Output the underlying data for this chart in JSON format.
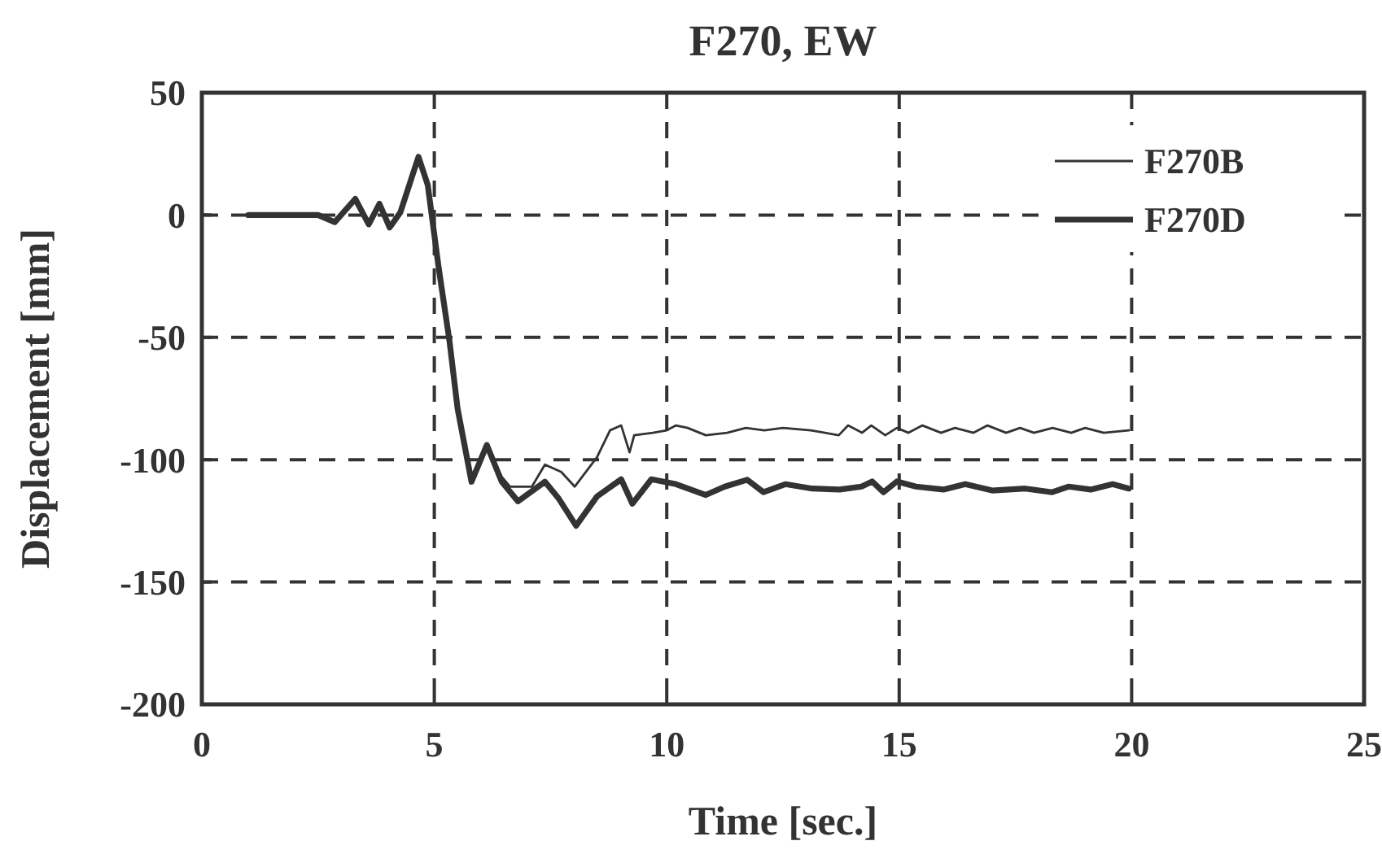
{
  "chart_data": {
    "type": "line",
    "title": "F270, EW",
    "xlabel": "Time [sec.]",
    "ylabel": "Displacement [mm]",
    "xlim": [
      0,
      25
    ],
    "xticks": [
      0,
      5,
      10,
      15,
      20,
      25
    ],
    "ylim": [
      -200,
      50
    ],
    "yticks": [
      -200,
      -150,
      -100,
      -50,
      0,
      50
    ],
    "grid": true,
    "legend": "top right",
    "line_style": "solid",
    "marker": "none",
    "series": [
      {
        "name": "F270B",
        "color": "#333333",
        "x": [
          1.0,
          2.5,
          2.86,
          3.3,
          3.59,
          3.82,
          4.04,
          4.27,
          4.66,
          4.86,
          5.09,
          5.33,
          5.5,
          5.8,
          6.13,
          6.45,
          6.63,
          7.1,
          7.38,
          7.73,
          8.02,
          8.5,
          8.78,
          9.02,
          9.2,
          9.3,
          9.7,
          10.0,
          10.2,
          10.45,
          10.84,
          11.3,
          11.7,
          12.1,
          12.5,
          13.1,
          13.7,
          13.9,
          14.2,
          14.4,
          14.7,
          14.95,
          15.2,
          15.5,
          15.9,
          16.2,
          16.6,
          16.9,
          17.3,
          17.6,
          17.9,
          18.3,
          18.7,
          19.0,
          19.4,
          19.94
        ],
        "values": [
          0,
          0,
          -2.9,
          6.6,
          -3.8,
          4.6,
          -5.1,
          1.1,
          23.8,
          12.2,
          -21,
          -52,
          -79,
          -109,
          -94,
          -107,
          -111,
          -111,
          -102,
          -105,
          -111,
          -99,
          -88,
          -86,
          -97,
          -90,
          -89,
          -88,
          -86,
          -87,
          -90,
          -89,
          -87,
          -88,
          -87,
          -88,
          -90,
          -86,
          -89,
          -86,
          -90,
          -87,
          -89,
          -86,
          -89,
          -87,
          -89,
          -86,
          -89,
          -87,
          -89,
          -87,
          -89,
          -87,
          -89,
          -88
        ]
      },
      {
        "name": "F270D",
        "color": "#333333",
        "x": [
          1.0,
          2.5,
          2.86,
          3.3,
          3.59,
          3.82,
          4.04,
          4.27,
          4.66,
          4.86,
          5.09,
          5.33,
          5.5,
          5.8,
          6.13,
          6.45,
          6.8,
          7.38,
          7.68,
          8.05,
          8.5,
          9.02,
          9.26,
          9.67,
          10.2,
          10.84,
          11.25,
          11.73,
          12.08,
          12.55,
          13.13,
          13.72,
          14.19,
          14.42,
          14.66,
          14.95,
          15.36,
          15.95,
          16.42,
          17.0,
          17.71,
          18.29,
          18.64,
          19.12,
          19.59,
          19.94
        ],
        "values": [
          0,
          0,
          -2.9,
          6.6,
          -3.8,
          4.6,
          -5.1,
          1.1,
          23.8,
          12.2,
          -21,
          -52,
          -79,
          -109,
          -94,
          -109,
          -117,
          -109,
          -116,
          -127,
          -115,
          -108,
          -118,
          -108,
          -110,
          -114.4,
          -111,
          -108.2,
          -113.3,
          -110,
          -111.8,
          -112.2,
          -111,
          -108.9,
          -113.3,
          -108.9,
          -111,
          -112.2,
          -110,
          -112.6,
          -111.8,
          -113.3,
          -111,
          -112.2,
          -110,
          -111.8
        ]
      }
    ]
  }
}
